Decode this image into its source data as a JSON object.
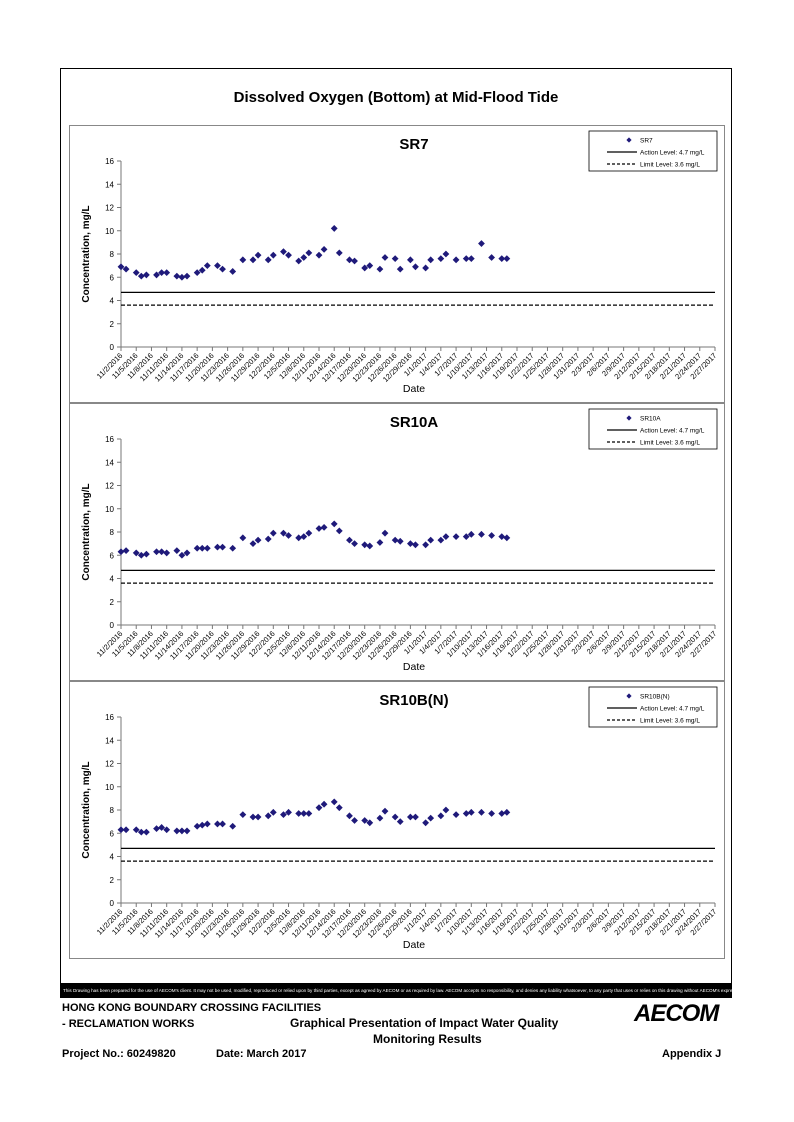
{
  "page": {
    "title": "Dissolved Oxygen (Bottom) at Mid-Flood Tide"
  },
  "chart_data": [
    {
      "type": "scatter",
      "title": "SR7",
      "xlabel": "Date",
      "ylabel": "Concentration, mg/L",
      "ylim": [
        0,
        16
      ],
      "yticks": [
        0,
        2,
        4,
        6,
        8,
        10,
        12,
        14,
        16
      ],
      "grid": false,
      "legend_position": "top-right",
      "xticks": [
        "11/2/2016",
        "11/5/2016",
        "11/8/2016",
        "11/11/2016",
        "11/14/2016",
        "11/17/2016",
        "11/20/2016",
        "11/23/2016",
        "11/26/2016",
        "11/29/2016",
        "12/2/2016",
        "12/5/2016",
        "12/8/2016",
        "12/11/2016",
        "12/14/2016",
        "12/17/2016",
        "12/20/2016",
        "12/23/2016",
        "12/26/2016",
        "12/29/2016",
        "1/1/2017",
        "1/4/2017",
        "1/7/2017",
        "1/10/2017",
        "1/13/2017",
        "1/16/2017",
        "1/19/2017",
        "1/22/2017",
        "1/25/2017",
        "1/28/2017",
        "1/31/2017",
        "2/3/2017",
        "2/6/2017",
        "2/9/2017",
        "2/12/2017",
        "2/15/2017",
        "2/18/2017",
        "2/21/2017",
        "2/24/2017",
        "2/27/2017"
      ],
      "series": [
        {
          "name": "SR7",
          "x": [
            "2016-11-02",
            "2016-11-03",
            "2016-11-05",
            "2016-11-06",
            "2016-11-07",
            "2016-11-09",
            "2016-11-10",
            "2016-11-11",
            "2016-11-13",
            "2016-11-14",
            "2016-11-15",
            "2016-11-17",
            "2016-11-18",
            "2016-11-19",
            "2016-11-21",
            "2016-11-22",
            "2016-11-24",
            "2016-11-26",
            "2016-11-28",
            "2016-11-29",
            "2016-12-01",
            "2016-12-02",
            "2016-12-04",
            "2016-12-05",
            "2016-12-07",
            "2016-12-08",
            "2016-12-09",
            "2016-12-11",
            "2016-12-12",
            "2016-12-14",
            "2016-12-15",
            "2016-12-17",
            "2016-12-18",
            "2016-12-20",
            "2016-12-21",
            "2016-12-23",
            "2016-12-24",
            "2016-12-26",
            "2016-12-27",
            "2016-12-29",
            "2016-12-30",
            "2017-01-01",
            "2017-01-02",
            "2017-01-04",
            "2017-01-05",
            "2017-01-07",
            "2017-01-09",
            "2017-01-10",
            "2017-01-12",
            "2017-01-14",
            "2017-01-16",
            "2017-01-17"
          ],
          "y": [
            6.9,
            6.7,
            6.4,
            6.1,
            6.2,
            6.2,
            6.4,
            6.4,
            6.1,
            6.0,
            6.1,
            6.4,
            6.6,
            7.0,
            7.0,
            6.7,
            6.5,
            7.5,
            7.5,
            7.9,
            7.5,
            7.9,
            8.2,
            7.9,
            7.4,
            7.7,
            8.1,
            7.9,
            8.4,
            10.2,
            8.1,
            7.5,
            7.4,
            6.8,
            7.0,
            6.7,
            7.7,
            7.6,
            6.7,
            7.5,
            6.9,
            6.8,
            7.5,
            7.6,
            8.0,
            7.5,
            7.6,
            7.6,
            8.9,
            7.7,
            7.6,
            7.6
          ]
        }
      ],
      "reference_lines": [
        {
          "name": "Action Level: 4.7 mg/L",
          "value": 4.7,
          "style": "solid"
        },
        {
          "name": "Limit Level: 3.6 mg/L",
          "value": 3.6,
          "style": "dashed"
        }
      ],
      "marker_color": "#1f1a7a"
    },
    {
      "type": "scatter",
      "title": "SR10A",
      "xlabel": "Date",
      "ylabel": "Concentration, mg/L",
      "ylim": [
        0,
        16
      ],
      "yticks": [
        0,
        2,
        4,
        6,
        8,
        10,
        12,
        14,
        16
      ],
      "grid": false,
      "legend_position": "top-right",
      "xticks": [
        "11/2/2016",
        "11/5/2016",
        "11/8/2016",
        "11/11/2016",
        "11/14/2016",
        "11/17/2016",
        "11/20/2016",
        "11/23/2016",
        "11/26/2016",
        "11/29/2016",
        "12/2/2016",
        "12/5/2016",
        "12/8/2016",
        "12/11/2016",
        "12/14/2016",
        "12/17/2016",
        "12/20/2016",
        "12/23/2016",
        "12/26/2016",
        "12/29/2016",
        "1/1/2017",
        "1/4/2017",
        "1/7/2017",
        "1/10/2017",
        "1/13/2017",
        "1/16/2017",
        "1/19/2017",
        "1/22/2017",
        "1/25/2017",
        "1/28/2017",
        "1/31/2017",
        "2/3/2017",
        "2/6/2017",
        "2/9/2017",
        "2/12/2017",
        "2/15/2017",
        "2/18/2017",
        "2/21/2017",
        "2/24/2017",
        "2/27/2017"
      ],
      "series": [
        {
          "name": "SR10A",
          "x": [
            "2016-11-02",
            "2016-11-03",
            "2016-11-05",
            "2016-11-06",
            "2016-11-07",
            "2016-11-09",
            "2016-11-10",
            "2016-11-11",
            "2016-11-13",
            "2016-11-14",
            "2016-11-15",
            "2016-11-17",
            "2016-11-18",
            "2016-11-19",
            "2016-11-21",
            "2016-11-22",
            "2016-11-24",
            "2016-11-26",
            "2016-11-28",
            "2016-11-29",
            "2016-12-01",
            "2016-12-02",
            "2016-12-04",
            "2016-12-05",
            "2016-12-07",
            "2016-12-08",
            "2016-12-09",
            "2016-12-11",
            "2016-12-12",
            "2016-12-14",
            "2016-12-15",
            "2016-12-17",
            "2016-12-18",
            "2016-12-20",
            "2016-12-21",
            "2016-12-23",
            "2016-12-24",
            "2016-12-26",
            "2016-12-27",
            "2016-12-29",
            "2016-12-30",
            "2017-01-01",
            "2017-01-02",
            "2017-01-04",
            "2017-01-05",
            "2017-01-07",
            "2017-01-09",
            "2017-01-10",
            "2017-01-12",
            "2017-01-14",
            "2017-01-16",
            "2017-01-17"
          ],
          "y": [
            6.3,
            6.4,
            6.2,
            6.0,
            6.1,
            6.3,
            6.3,
            6.2,
            6.4,
            6.0,
            6.2,
            6.6,
            6.6,
            6.6,
            6.7,
            6.7,
            6.6,
            7.5,
            7.0,
            7.3,
            7.4,
            7.9,
            7.9,
            7.7,
            7.5,
            7.6,
            7.9,
            8.3,
            8.4,
            8.7,
            8.1,
            7.3,
            7.0,
            6.9,
            6.8,
            7.1,
            7.9,
            7.3,
            7.2,
            7.0,
            6.9,
            6.9,
            7.3,
            7.3,
            7.6,
            7.6,
            7.6,
            7.8,
            7.8,
            7.7,
            7.6,
            7.5
          ]
        }
      ],
      "reference_lines": [
        {
          "name": "Action Level: 4.7 mg/L",
          "value": 4.7,
          "style": "solid"
        },
        {
          "name": "Limit Level: 3.6 mg/L",
          "value": 3.6,
          "style": "dashed"
        }
      ],
      "marker_color": "#1f1a7a"
    },
    {
      "type": "scatter",
      "title": "SR10B(N)",
      "xlabel": "Date",
      "ylabel": "Concentration, mg/L",
      "ylim": [
        0,
        16
      ],
      "yticks": [
        0,
        2,
        4,
        6,
        8,
        10,
        12,
        14,
        16
      ],
      "grid": false,
      "legend_position": "top-right",
      "xticks": [
        "11/2/2016",
        "11/5/2016",
        "11/8/2016",
        "11/11/2016",
        "11/14/2016",
        "11/17/2016",
        "11/20/2016",
        "11/23/2016",
        "11/26/2016",
        "11/29/2016",
        "12/2/2016",
        "12/5/2016",
        "12/8/2016",
        "12/11/2016",
        "12/14/2016",
        "12/17/2016",
        "12/20/2016",
        "12/23/2016",
        "12/26/2016",
        "12/29/2016",
        "1/1/2017",
        "1/4/2017",
        "1/7/2017",
        "1/10/2017",
        "1/13/2017",
        "1/16/2017",
        "1/19/2017",
        "1/22/2017",
        "1/25/2017",
        "1/28/2017",
        "1/31/2017",
        "2/3/2017",
        "2/6/2017",
        "2/9/2017",
        "2/12/2017",
        "2/15/2017",
        "2/18/2017",
        "2/21/2017",
        "2/24/2017",
        "2/27/2017"
      ],
      "series": [
        {
          "name": "SR10B(N)",
          "x": [
            "2016-11-02",
            "2016-11-03",
            "2016-11-05",
            "2016-11-06",
            "2016-11-07",
            "2016-11-09",
            "2016-11-10",
            "2016-11-11",
            "2016-11-13",
            "2016-11-14",
            "2016-11-15",
            "2016-11-17",
            "2016-11-18",
            "2016-11-19",
            "2016-11-21",
            "2016-11-22",
            "2016-11-24",
            "2016-11-26",
            "2016-11-28",
            "2016-11-29",
            "2016-12-01",
            "2016-12-02",
            "2016-12-04",
            "2016-12-05",
            "2016-12-07",
            "2016-12-08",
            "2016-12-09",
            "2016-12-11",
            "2016-12-12",
            "2016-12-14",
            "2016-12-15",
            "2016-12-17",
            "2016-12-18",
            "2016-12-20",
            "2016-12-21",
            "2016-12-23",
            "2016-12-24",
            "2016-12-26",
            "2016-12-27",
            "2016-12-29",
            "2016-12-30",
            "2017-01-01",
            "2017-01-02",
            "2017-01-04",
            "2017-01-05",
            "2017-01-07",
            "2017-01-09",
            "2017-01-10",
            "2017-01-12",
            "2017-01-14",
            "2017-01-16",
            "2017-01-17"
          ],
          "y": [
            6.3,
            6.3,
            6.3,
            6.1,
            6.1,
            6.4,
            6.5,
            6.3,
            6.2,
            6.2,
            6.2,
            6.6,
            6.7,
            6.8,
            6.8,
            6.8,
            6.6,
            7.6,
            7.4,
            7.4,
            7.5,
            7.8,
            7.6,
            7.8,
            7.7,
            7.7,
            7.7,
            8.2,
            8.5,
            8.7,
            8.2,
            7.5,
            7.1,
            7.1,
            6.9,
            7.3,
            7.9,
            7.4,
            7.0,
            7.4,
            7.4,
            6.9,
            7.3,
            7.5,
            8.0,
            7.6,
            7.7,
            7.8,
            7.8,
            7.7,
            7.7,
            7.8
          ]
        }
      ],
      "reference_lines": [
        {
          "name": "Action Level: 4.7 mg/L",
          "value": 4.7,
          "style": "solid"
        },
        {
          "name": "Limit Level: 3.6 mg/L",
          "value": 3.6,
          "style": "dashed"
        }
      ],
      "marker_color": "#1f1a7a"
    }
  ],
  "footer": {
    "disclaimer": "This Drawing has been prepared for the use of AECOM's client. It may not be used, modified, reproduced or relied upon by third parties, except as agreed by AECOM or as required by law. AECOM accepts no responsibility, and denies any liability whatsoever, to any party that uses or relies on this drawing without AECOM's express written consent.",
    "project_line1": "HONG KONG BOUNDARY CROSSING FACILITIES",
    "project_line2": "- RECLAMATION WORKS",
    "center_line1": "Graphical Presentation of Impact Water Quality",
    "center_line2": "Monitoring Results",
    "project_no": "Project No.: 60249820",
    "date": "Date: March 2017",
    "appendix": "Appendix J",
    "logo": "AECOM"
  }
}
